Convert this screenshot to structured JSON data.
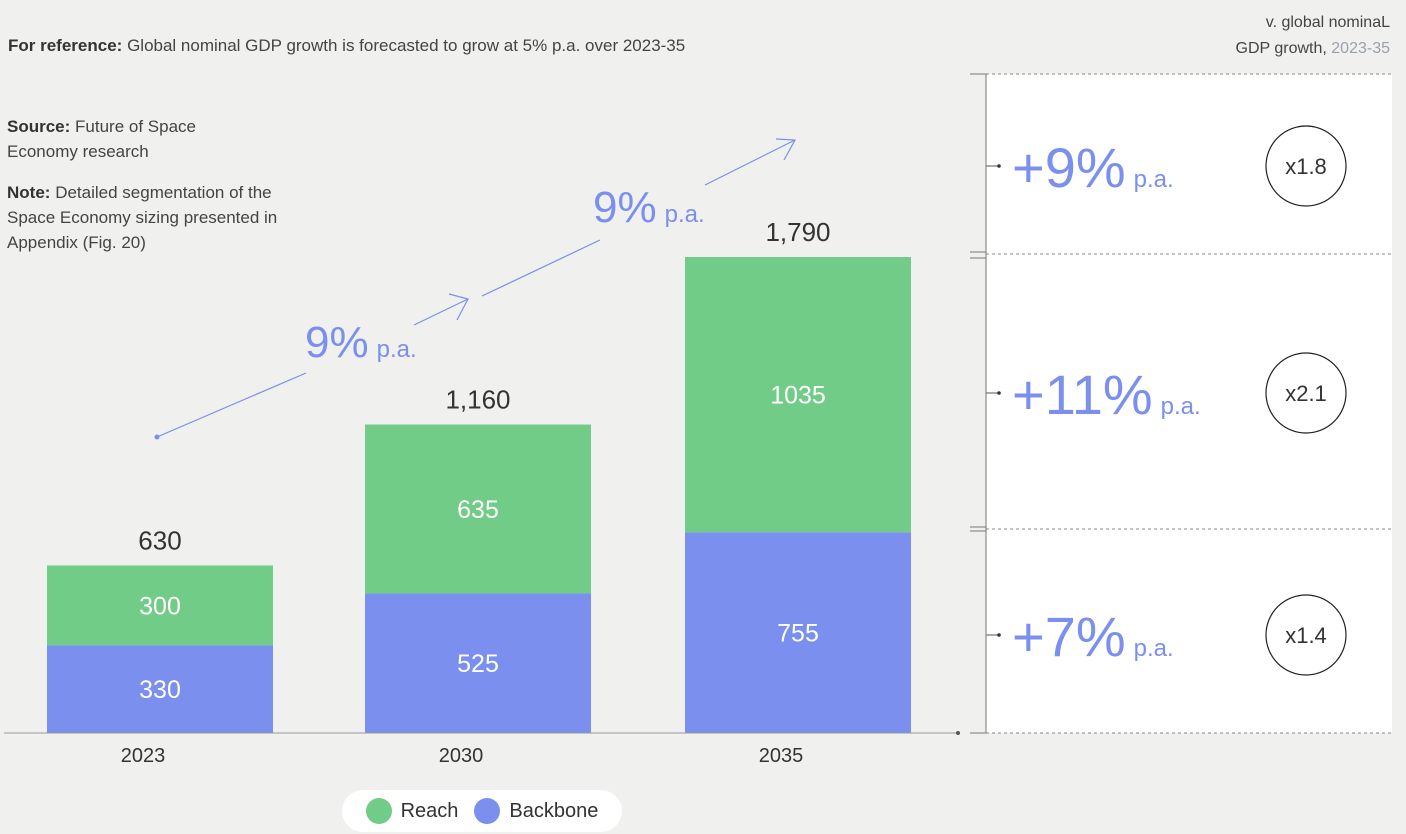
{
  "reference": {
    "label": "For reference:",
    "text": "Global nominal GDP growth is forecasted to grow at 5% p.a. over 2023-35"
  },
  "source": {
    "label": "Source:",
    "text": "Future of Space Economy research"
  },
  "note": {
    "label": "Note:",
    "text": "Detailed segmentation of the Space Economy sizing presented in Appendix (Fig. 20)"
  },
  "right_header": {
    "line1": "v. global nominaL",
    "line2": "GDP growth,",
    "years": "2023-35"
  },
  "colors": {
    "reach": "#70cc87",
    "backbone": "#7a8fee",
    "growth": "#7a8fee",
    "segment_text": "#ffffff"
  },
  "chart_data": {
    "type": "bar",
    "stacked": true,
    "categories": [
      "2023",
      "2030",
      "2035"
    ],
    "series": [
      {
        "name": "Backbone",
        "values": [
          330,
          525,
          755
        ]
      },
      {
        "name": "Reach",
        "values": [
          300,
          635,
          1035
        ]
      }
    ],
    "totals": [
      "630",
      "1,160",
      "1,790"
    ],
    "segment_labels": {
      "Backbone": [
        "330",
        "525",
        "755"
      ],
      "Reach": [
        "300",
        "635",
        "1035"
      ]
    },
    "growth_arrows": [
      {
        "value": "9%",
        "unit": "p.a."
      },
      {
        "value": "9%",
        "unit": "p.a."
      }
    ],
    "legend": [
      "Reach",
      "Backbone"
    ],
    "legend_placement": "bottom-center"
  },
  "growth_panel": [
    {
      "rate": "+9%",
      "unit": "p.a.",
      "multiple": "x1.8"
    },
    {
      "rate": "+11%",
      "unit": "p.a.",
      "multiple": "x2.1"
    },
    {
      "rate": "+7%",
      "unit": "p.a.",
      "multiple": "x1.4"
    }
  ]
}
